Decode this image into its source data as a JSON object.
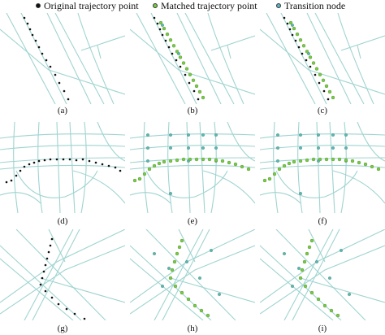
{
  "legend": {
    "original": {
      "label": "Original trajectory point",
      "color": "#111111"
    },
    "matched": {
      "label": "Matched trajectory point",
      "color": "#7ac943"
    },
    "transition": {
      "label": "Transition node",
      "color": "#5ab4c5"
    }
  },
  "road_color": "#9fd4d0",
  "panels": [
    {
      "caption": "(a)",
      "scene": "parallel",
      "shows": [
        "original"
      ]
    },
    {
      "caption": "(b)",
      "scene": "parallel",
      "shows": [
        "original",
        "matched",
        "transition"
      ]
    },
    {
      "caption": "(c)",
      "scene": "parallel",
      "shows": [
        "original",
        "matched",
        "transition"
      ]
    },
    {
      "caption": "(d)",
      "scene": "curve",
      "shows": [
        "original"
      ]
    },
    {
      "caption": "(e)",
      "scene": "curve",
      "shows": [
        "matched",
        "transition"
      ]
    },
    {
      "caption": "(f)",
      "scene": "curve",
      "shows": [
        "matched",
        "transition"
      ]
    },
    {
      "caption": "(g)",
      "scene": "cross",
      "shows": [
        "original"
      ]
    },
    {
      "caption": "(h)",
      "scene": "cross",
      "shows": [
        "matched",
        "transition"
      ]
    },
    {
      "caption": "(i)",
      "scene": "cross",
      "shows": [
        "matched",
        "transition"
      ]
    }
  ]
}
